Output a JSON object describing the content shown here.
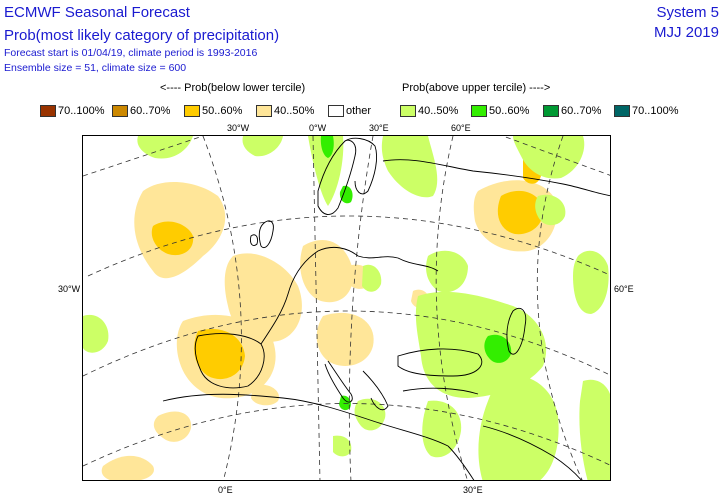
{
  "header": {
    "title": "ECMWF Seasonal Forecast",
    "subtitle": "Prob(most likely category of precipitation)",
    "line1": "Forecast start is 01/04/19, climate period is 1993-2016",
    "line2": "Ensemble size = 51, climate size = 600",
    "system": "System 5",
    "period": "MJJ 2019"
  },
  "legend": {
    "below_header": "<---- Prob(below lower tercile)",
    "above_header": "Prob(above upper tercile) ---->",
    "items": [
      {
        "label": "70..100%",
        "color": "#993300"
      },
      {
        "label": "60..70%",
        "color": "#cc8800"
      },
      {
        "label": "50..60%",
        "color": "#ffcc00"
      },
      {
        "label": "40..50%",
        "color": "#ffe699"
      },
      {
        "label": "other",
        "color": "#ffffff"
      },
      {
        "label": "40..50%",
        "color": "#ccff66"
      },
      {
        "label": "50..60%",
        "color": "#33ee00"
      },
      {
        "label": "60..70%",
        "color": "#009933"
      },
      {
        "label": "70..100%",
        "color": "#006666"
      }
    ]
  },
  "grid_labels": {
    "top": [
      "30°W",
      "0°W",
      "30°E",
      "60°E"
    ],
    "bottom": [
      "0°E",
      "30°E"
    ],
    "left": "30°W",
    "right": "60°E"
  }
}
